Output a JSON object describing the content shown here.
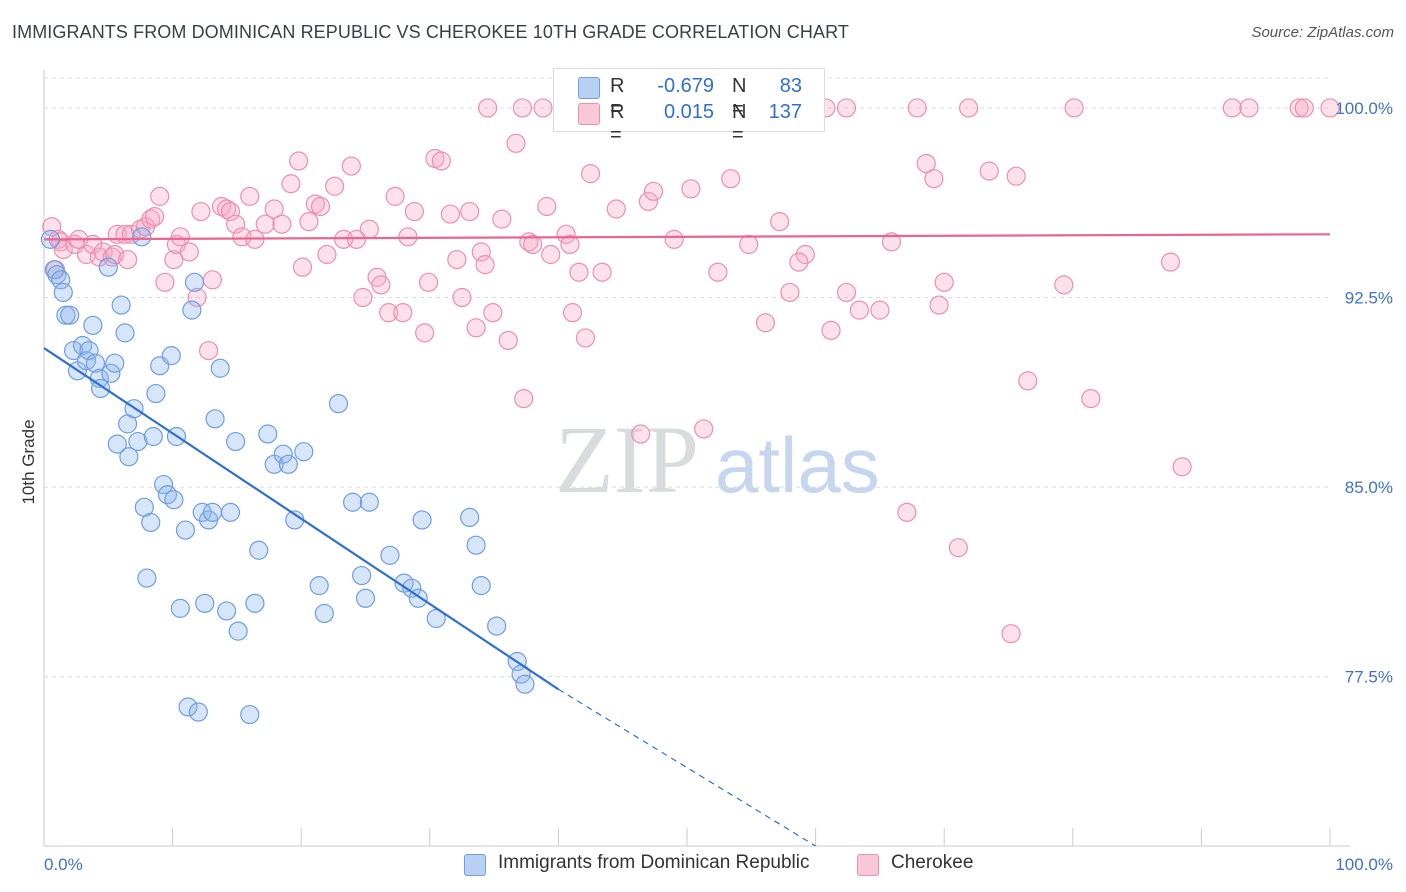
{
  "title": "IMMIGRANTS FROM DOMINICAN REPUBLIC VS CHEROKEE 10TH GRADE CORRELATION CHART",
  "source": "Source: ZipAtlas.com",
  "watermark": {
    "part1": "ZIP",
    "part2": "atlas"
  },
  "legend_top": {
    "rows": [
      {
        "r_label": "R =",
        "r_value": "-0.679",
        "n_label": "N =",
        "n_value": "83",
        "color": "#a9c7f0",
        "border": "#6e9ee0"
      },
      {
        "r_label": "R =",
        "r_value": "0.015",
        "n_label": "N =",
        "n_value": "137",
        "color": "#f7bcd0",
        "border": "#ec8fae"
      }
    ]
  },
  "legend_bottom": [
    {
      "label": "Immigrants from Dominican Republic",
      "color": "#a9c7f0",
      "border": "#6e9ee0"
    },
    {
      "label": "Cherokee",
      "color": "#f7bcd0",
      "border": "#ec8fae"
    }
  ],
  "colors": {
    "blue": "#2f6fd1",
    "pink": "#e8668f",
    "blue_fill": "rgba(140,180,235,0.35)",
    "pink_fill": "rgba(245,170,195,0.35)",
    "grid": "#d8dbe0",
    "tick_label": "#3f72c8"
  },
  "chart_data": {
    "type": "scatter",
    "title": "IMMIGRANTS FROM DOMINICAN REPUBLIC VS CHEROKEE 10TH GRADE CORRELATION CHART",
    "xlabel": "",
    "ylabel": "10th Grade",
    "xlim": [
      0,
      100
    ],
    "ylim": [
      70.8,
      101.5
    ],
    "x_tick_labels": [
      "0.0%",
      "100.0%"
    ],
    "y_ticks": [
      77.5,
      85.0,
      92.5,
      100.0
    ],
    "y_tick_labels": [
      "77.5%",
      "85.0%",
      "92.5%",
      "100.0%"
    ],
    "grid": true,
    "legend_position": "top-center",
    "series": [
      {
        "name": "Immigrants from Dominican Republic",
        "color": "#6e9ee0",
        "trend": {
          "x": [
            0,
            40
          ],
          "y": [
            90.5,
            77.0
          ],
          "dashed_extension": {
            "x": [
              40,
              60
            ],
            "y": [
              77.0,
              70.8
            ]
          }
        },
        "points": [
          [
            0.5,
            94.8
          ],
          [
            0.8,
            93.6
          ],
          [
            1.0,
            93.4
          ],
          [
            1.3,
            93.2
          ],
          [
            1.5,
            92.7
          ],
          [
            1.7,
            91.8
          ],
          [
            2.0,
            91.8
          ],
          [
            2.3,
            90.4
          ],
          [
            2.6,
            89.6
          ],
          [
            3.0,
            90.6
          ],
          [
            3.3,
            90.0
          ],
          [
            3.5,
            90.4
          ],
          [
            3.8,
            91.4
          ],
          [
            4.0,
            89.9
          ],
          [
            4.3,
            89.3
          ],
          [
            4.4,
            88.9
          ],
          [
            5.0,
            93.7
          ],
          [
            5.2,
            89.5
          ],
          [
            5.5,
            89.9
          ],
          [
            5.7,
            86.7
          ],
          [
            6.0,
            92.2
          ],
          [
            6.3,
            91.1
          ],
          [
            6.5,
            87.5
          ],
          [
            6.6,
            86.2
          ],
          [
            7.0,
            88.1
          ],
          [
            7.3,
            86.8
          ],
          [
            7.6,
            94.9
          ],
          [
            7.8,
            84.2
          ],
          [
            8.0,
            81.4
          ],
          [
            8.3,
            83.6
          ],
          [
            8.5,
            87.0
          ],
          [
            8.7,
            88.7
          ],
          [
            9.0,
            89.8
          ],
          [
            9.3,
            85.1
          ],
          [
            9.6,
            84.7
          ],
          [
            9.9,
            90.2
          ],
          [
            10.1,
            84.5
          ],
          [
            10.3,
            87.0
          ],
          [
            10.6,
            80.2
          ],
          [
            11.0,
            83.3
          ],
          [
            11.2,
            76.3
          ],
          [
            11.5,
            92.0
          ],
          [
            11.7,
            93.1
          ],
          [
            12.0,
            76.1
          ],
          [
            12.3,
            84.0
          ],
          [
            12.5,
            80.4
          ],
          [
            12.8,
            83.7
          ],
          [
            13.1,
            84.0
          ],
          [
            13.3,
            87.7
          ],
          [
            13.7,
            89.7
          ],
          [
            14.2,
            80.1
          ],
          [
            14.5,
            84.0
          ],
          [
            14.9,
            86.8
          ],
          [
            15.1,
            79.3
          ],
          [
            16.0,
            76.0
          ],
          [
            16.4,
            80.4
          ],
          [
            16.7,
            82.5
          ],
          [
            17.4,
            87.1
          ],
          [
            17.9,
            85.9
          ],
          [
            18.6,
            86.3
          ],
          [
            19.0,
            85.9
          ],
          [
            19.5,
            83.7
          ],
          [
            20.2,
            86.4
          ],
          [
            21.4,
            81.1
          ],
          [
            21.8,
            80.0
          ],
          [
            22.9,
            88.3
          ],
          [
            24.0,
            84.4
          ],
          [
            24.7,
            81.5
          ],
          [
            25.0,
            80.6
          ],
          [
            25.3,
            84.4
          ],
          [
            26.9,
            82.3
          ],
          [
            28.0,
            81.2
          ],
          [
            28.6,
            81.0
          ],
          [
            29.1,
            80.6
          ],
          [
            29.4,
            83.7
          ],
          [
            30.5,
            79.8
          ],
          [
            33.1,
            83.8
          ],
          [
            33.6,
            82.7
          ],
          [
            34.0,
            81.1
          ],
          [
            35.2,
            79.5
          ],
          [
            36.8,
            78.1
          ],
          [
            37.1,
            77.6
          ],
          [
            37.4,
            77.2
          ]
        ]
      },
      {
        "name": "Cherokee",
        "color": "#ec8fae",
        "trend": {
          "x": [
            0,
            100
          ],
          "y": [
            94.8,
            95.0
          ]
        },
        "points": [
          [
            0.6,
            95.3
          ],
          [
            0.9,
            93.6
          ],
          [
            1.1,
            94.8
          ],
          [
            1.3,
            94.7
          ],
          [
            1.5,
            94.4
          ],
          [
            2.4,
            94.6
          ],
          [
            2.7,
            94.8
          ],
          [
            3.3,
            94.2
          ],
          [
            3.8,
            94.6
          ],
          [
            4.3,
            94.1
          ],
          [
            4.6,
            94.3
          ],
          [
            5.3,
            94.1
          ],
          [
            5.5,
            94.2
          ],
          [
            5.7,
            95.0
          ],
          [
            6.3,
            95.0
          ],
          [
            6.5,
            94.0
          ],
          [
            6.8,
            95.0
          ],
          [
            7.5,
            95.2
          ],
          [
            7.9,
            95.3
          ],
          [
            8.3,
            95.6
          ],
          [
            8.6,
            95.7
          ],
          [
            9.0,
            96.5
          ],
          [
            9.4,
            93.1
          ],
          [
            10.1,
            94.0
          ],
          [
            10.3,
            94.6
          ],
          [
            10.6,
            94.9
          ],
          [
            11.3,
            94.3
          ],
          [
            11.9,
            92.5
          ],
          [
            12.2,
            95.9
          ],
          [
            12.8,
            90.4
          ],
          [
            13.1,
            93.2
          ],
          [
            13.8,
            96.1
          ],
          [
            14.2,
            96.0
          ],
          [
            14.5,
            95.9
          ],
          [
            14.9,
            95.4
          ],
          [
            15.4,
            94.9
          ],
          [
            16.0,
            96.5
          ],
          [
            16.4,
            94.8
          ],
          [
            17.2,
            95.4
          ],
          [
            17.9,
            96.0
          ],
          [
            18.5,
            95.4
          ],
          [
            19.2,
            97.0
          ],
          [
            19.8,
            97.9
          ],
          [
            20.1,
            93.7
          ],
          [
            20.6,
            95.5
          ],
          [
            21.1,
            96.2
          ],
          [
            21.5,
            96.1
          ],
          [
            22.0,
            94.2
          ],
          [
            22.6,
            96.9
          ],
          [
            23.3,
            94.8
          ],
          [
            23.9,
            97.7
          ],
          [
            24.3,
            94.8
          ],
          [
            24.8,
            92.5
          ],
          [
            25.3,
            95.2
          ],
          [
            25.9,
            93.3
          ],
          [
            26.2,
            93.0
          ],
          [
            26.8,
            91.9
          ],
          [
            27.3,
            96.5
          ],
          [
            27.9,
            91.9
          ],
          [
            28.3,
            94.9
          ],
          [
            28.8,
            95.9
          ],
          [
            29.6,
            91.1
          ],
          [
            29.9,
            93.1
          ],
          [
            30.4,
            98.0
          ],
          [
            30.9,
            97.9
          ],
          [
            31.6,
            95.8
          ],
          [
            32.1,
            94.0
          ],
          [
            32.5,
            92.5
          ],
          [
            33.1,
            95.9
          ],
          [
            33.6,
            91.3
          ],
          [
            34.0,
            94.3
          ],
          [
            34.3,
            93.8
          ],
          [
            34.9,
            91.9
          ],
          [
            35.6,
            95.6
          ],
          [
            36.1,
            90.8
          ],
          [
            36.7,
            98.6
          ],
          [
            37.3,
            88.5
          ],
          [
            37.7,
            94.7
          ],
          [
            38.0,
            94.6
          ],
          [
            39.1,
            96.1
          ],
          [
            39.4,
            94.2
          ],
          [
            40.6,
            95.0
          ],
          [
            40.9,
            94.6
          ],
          [
            41.1,
            91.9
          ],
          [
            41.6,
            93.5
          ],
          [
            42.1,
            90.9
          ],
          [
            42.5,
            97.4
          ],
          [
            43.4,
            93.5
          ],
          [
            44.5,
            96.0
          ],
          [
            46.4,
            87.1
          ],
          [
            47.0,
            96.3
          ],
          [
            47.4,
            96.7
          ],
          [
            49.0,
            94.8
          ],
          [
            50.3,
            96.8
          ],
          [
            51.3,
            87.3
          ],
          [
            52.4,
            93.5
          ],
          [
            53.4,
            97.2
          ],
          [
            54.8,
            94.6
          ],
          [
            56.1,
            91.5
          ],
          [
            57.2,
            95.5
          ],
          [
            58.0,
            92.7
          ],
          [
            59.2,
            94.2
          ],
          [
            58.7,
            93.9
          ],
          [
            61.2,
            91.2
          ],
          [
            62.4,
            92.7
          ],
          [
            63.4,
            92.0
          ],
          [
            65.0,
            92.0
          ],
          [
            65.9,
            94.7
          ],
          [
            67.1,
            84.0
          ],
          [
            68.6,
            97.8
          ],
          [
            69.2,
            97.2
          ],
          [
            69.6,
            92.2
          ],
          [
            70.0,
            93.1
          ],
          [
            71.1,
            82.6
          ],
          [
            73.5,
            97.5
          ],
          [
            75.2,
            79.2
          ],
          [
            75.6,
            97.3
          ],
          [
            76.5,
            89.2
          ],
          [
            79.3,
            93.0
          ],
          [
            81.4,
            88.5
          ],
          [
            87.6,
            93.9
          ],
          [
            88.5,
            85.8
          ],
          [
            34.5,
            100
          ],
          [
            37.2,
            100
          ],
          [
            38.8,
            100
          ],
          [
            41.5,
            100
          ],
          [
            46.5,
            100
          ],
          [
            47.4,
            100
          ],
          [
            48.0,
            100
          ],
          [
            53.4,
            100
          ],
          [
            60.8,
            100
          ],
          [
            62.4,
            100
          ],
          [
            67.9,
            100
          ],
          [
            71.9,
            100
          ],
          [
            80.1,
            100
          ],
          [
            92.4,
            100
          ],
          [
            93.7,
            100
          ],
          [
            97.6,
            100
          ],
          [
            98.0,
            100
          ],
          [
            100,
            100
          ]
        ]
      }
    ]
  }
}
